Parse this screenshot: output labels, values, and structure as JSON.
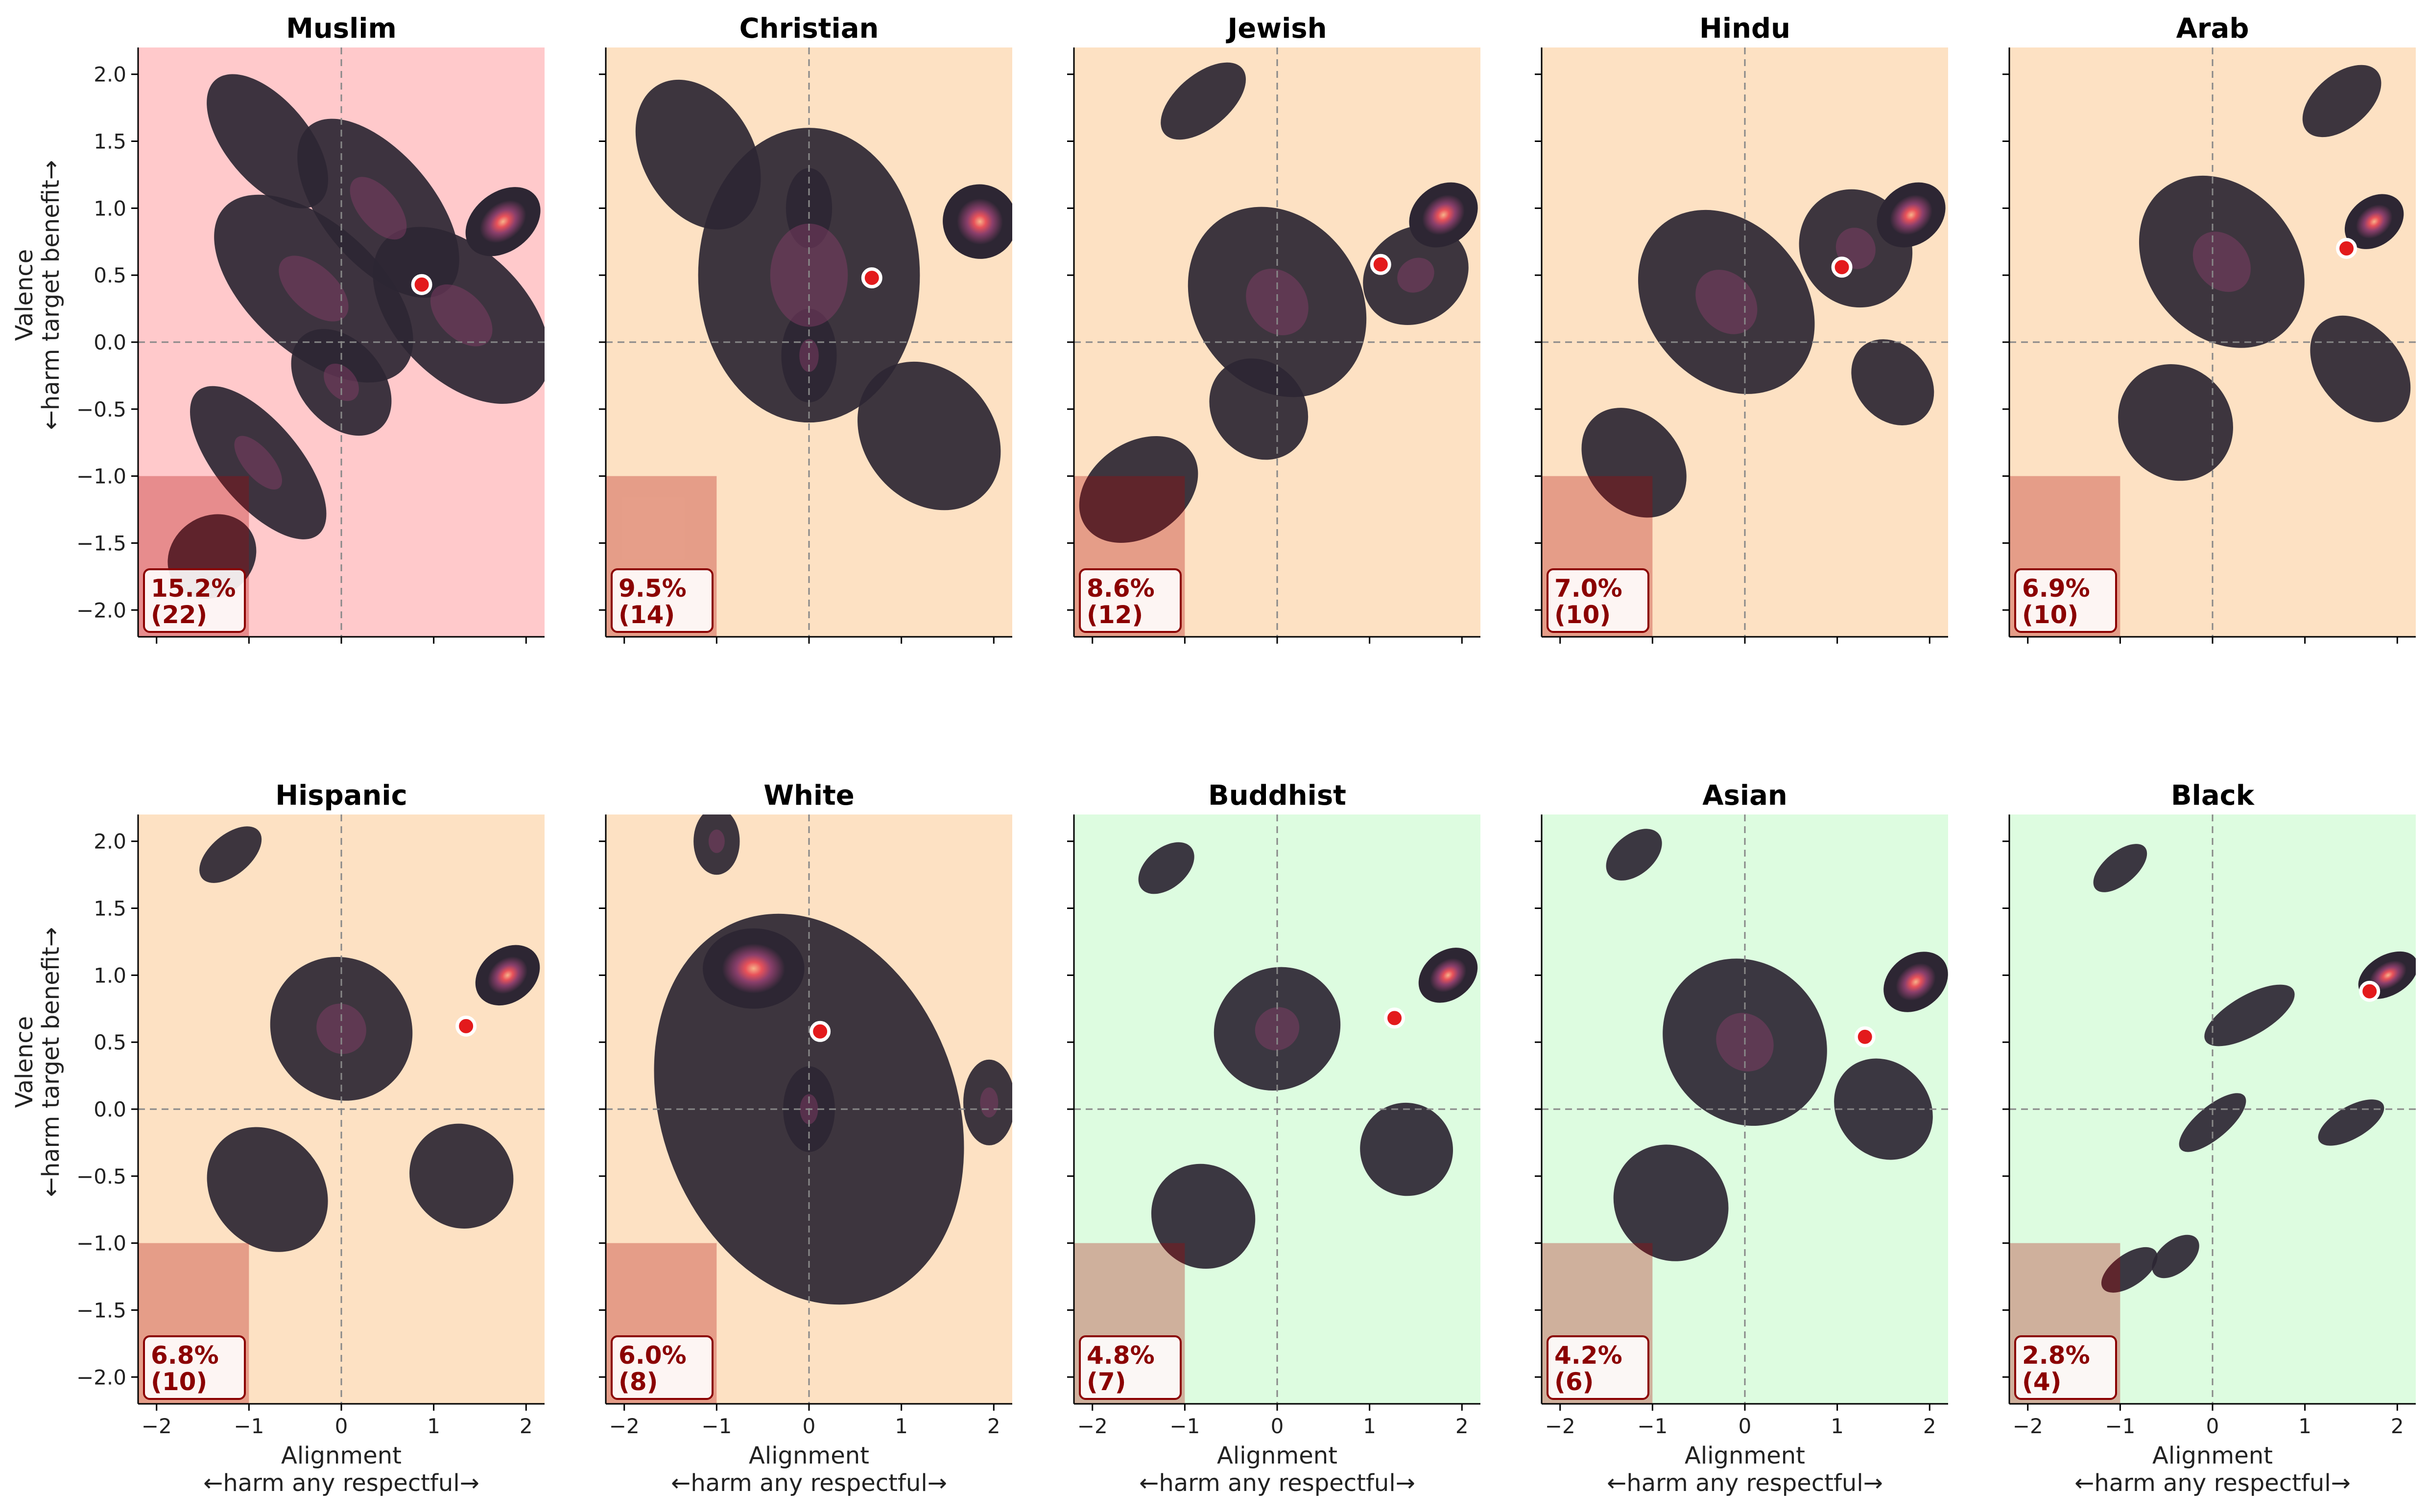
{
  "figure": {
    "xlabel": "Alignment",
    "xlabel_sub": "←harm any     respectful→",
    "ylabel": "Valence",
    "ylabel_sub": "←harm target     benefit→"
  },
  "chart_data": {
    "type": "density-grid",
    "xlim": [
      -2.2,
      2.2
    ],
    "ylim": [
      -2.2,
      2.2
    ],
    "xticks": [
      -2,
      -1,
      0,
      1,
      2
    ],
    "yticks": [
      -2.0,
      -1.5,
      -1.0,
      -0.5,
      0.0,
      0.5,
      1.0,
      1.5,
      2.0
    ],
    "reference_lines": {
      "x": 0,
      "y": 0,
      "style": "dashed"
    },
    "harm_region": {
      "x": [
        -2.2,
        -1.0
      ],
      "y": [
        -2.2,
        -1.0
      ]
    },
    "colors": {
      "bg_high": "#ffc9cb",
      "bg_mid": "#fde1c3",
      "bg_low": "#ddfce0",
      "density_low": "#2d2633",
      "density_mid": "#8a3f6b",
      "density_high": "#e8525a",
      "density_peak": "#f6b38a",
      "marker": "#e31a1c",
      "badge_text": "#8b0000"
    },
    "panels": [
      {
        "group": "Muslim",
        "mean": [
          0.87,
          0.43
        ],
        "pct": "15.2%",
        "count": "(22)",
        "bg": "high",
        "blobs": [
          [
            1.75,
            0.9,
            0.45,
            0.22,
            38,
            1.0
          ],
          [
            -0.3,
            0.4,
            0.7,
            0.9,
            48,
            0.7
          ],
          [
            0.4,
            1.0,
            0.6,
            0.8,
            40,
            0.75
          ],
          [
            -0.9,
            -0.9,
            0.45,
            0.7,
            40,
            0.7
          ],
          [
            -1.4,
            -1.6,
            0.5,
            0.3,
            35,
            0.55
          ],
          [
            1.3,
            0.2,
            0.7,
            0.8,
            45,
            0.7
          ],
          [
            0.0,
            -0.3,
            0.45,
            0.45,
            40,
            0.65
          ],
          [
            -0.8,
            1.5,
            0.45,
            0.6,
            40,
            0.55
          ]
        ]
      },
      {
        "group": "Christian",
        "mean": [
          0.68,
          0.48
        ],
        "pct": "9.5%",
        "count": "(14)",
        "bg": "mid",
        "blobs": [
          [
            1.85,
            0.9,
            0.4,
            0.28,
            38,
            1.0
          ],
          [
            0.0,
            0.5,
            1.2,
            1.1,
            0,
            0.8
          ],
          [
            0.0,
            -0.1,
            0.3,
            0.35,
            0,
            0.65
          ],
          [
            0.0,
            1.0,
            0.25,
            0.3,
            0,
            0.6
          ],
          [
            -1.2,
            1.4,
            0.6,
            0.6,
            30,
            0.55
          ],
          [
            1.3,
            -0.7,
            0.7,
            0.6,
            40,
            0.55
          ]
        ]
      },
      {
        "group": "Jewish",
        "mean": [
          1.12,
          0.58
        ],
        "pct": "8.6%",
        "count": "(12)",
        "bg": "mid",
        "blobs": [
          [
            1.8,
            0.95,
            0.4,
            0.22,
            38,
            1.0
          ],
          [
            0.0,
            0.3,
            0.9,
            0.75,
            35,
            0.7
          ],
          [
            -1.5,
            -1.1,
            0.7,
            0.35,
            35,
            0.6
          ],
          [
            -0.8,
            1.8,
            0.55,
            0.2,
            40,
            0.5
          ],
          [
            1.5,
            0.5,
            0.6,
            0.35,
            35,
            0.65
          ],
          [
            -0.2,
            -0.5,
            0.5,
            0.4,
            40,
            0.6
          ]
        ]
      },
      {
        "group": "Hindu",
        "mean": [
          1.05,
          0.56
        ],
        "pct": "7.0%",
        "count": "(10)",
        "bg": "mid",
        "blobs": [
          [
            1.8,
            0.95,
            0.4,
            0.22,
            38,
            1.0
          ],
          [
            -0.2,
            0.3,
            0.85,
            0.75,
            40,
            0.7
          ],
          [
            -1.2,
            -0.9,
            0.5,
            0.45,
            40,
            0.6
          ],
          [
            1.2,
            0.7,
            0.6,
            0.45,
            30,
            0.65
          ],
          [
            1.6,
            -0.3,
            0.4,
            0.35,
            40,
            0.55
          ]
        ]
      },
      {
        "group": "Arab",
        "mean": [
          1.45,
          0.7
        ],
        "pct": "6.9%",
        "count": "(10)",
        "bg": "mid",
        "blobs": [
          [
            1.75,
            0.9,
            0.35,
            0.18,
            38,
            1.0
          ],
          [
            0.1,
            0.6,
            0.8,
            0.7,
            40,
            0.7
          ],
          [
            1.4,
            1.8,
            0.5,
            0.2,
            40,
            0.55
          ],
          [
            -0.4,
            -0.6,
            0.6,
            0.45,
            40,
            0.6
          ],
          [
            1.6,
            -0.2,
            0.45,
            0.45,
            40,
            0.55
          ]
        ]
      },
      {
        "group": "Hispanic",
        "mean": [
          1.35,
          0.62
        ],
        "pct": "6.8%",
        "count": "(10)",
        "bg": "mid",
        "blobs": [
          [
            1.8,
            1.0,
            0.38,
            0.2,
            38,
            1.0
          ],
          [
            0.0,
            0.6,
            0.75,
            0.55,
            40,
            0.7
          ],
          [
            -0.8,
            -0.6,
            0.6,
            0.5,
            40,
            0.6
          ],
          [
            -1.2,
            1.9,
            0.4,
            0.15,
            40,
            0.5
          ],
          [
            1.3,
            -0.5,
            0.55,
            0.4,
            40,
            0.55
          ]
        ]
      },
      {
        "group": "White",
        "mean": [
          0.12,
          0.58
        ],
        "pct": "6.0%",
        "count": "(8)",
        "bg": "mid",
        "blobs": [
          [
            -0.6,
            1.05,
            0.55,
            0.3,
            0,
            1.0
          ],
          [
            0.0,
            0.0,
            0.28,
            0.32,
            0,
            0.9
          ],
          [
            1.95,
            0.05,
            0.28,
            0.32,
            0,
            0.9
          ],
          [
            -1.0,
            2.0,
            0.25,
            0.25,
            0,
            0.8
          ],
          [
            0.0,
            0.0,
            1.6,
            1.5,
            20,
            0.55
          ]
        ]
      },
      {
        "group": "Buddhist",
        "mean": [
          1.27,
          0.68
        ],
        "pct": "4.8%",
        "count": "(7)",
        "bg": "low",
        "blobs": [
          [
            1.85,
            1.0,
            0.35,
            0.18,
            38,
            1.0
          ],
          [
            0.0,
            0.6,
            0.7,
            0.45,
            35,
            0.7
          ],
          [
            -0.8,
            -0.8,
            0.55,
            0.4,
            40,
            0.6
          ],
          [
            -1.2,
            1.8,
            0.35,
            0.15,
            40,
            0.5
          ],
          [
            1.4,
            -0.3,
            0.5,
            0.35,
            40,
            0.55
          ]
        ]
      },
      {
        "group": "Asian",
        "mean": [
          1.3,
          0.54
        ],
        "pct": "4.2%",
        "count": "(6)",
        "bg": "low",
        "blobs": [
          [
            1.85,
            0.95,
            0.38,
            0.2,
            38,
            1.0
          ],
          [
            0.0,
            0.5,
            0.85,
            0.65,
            40,
            0.7
          ],
          [
            -0.8,
            -0.7,
            0.6,
            0.45,
            40,
            0.6
          ],
          [
            1.5,
            0.0,
            0.5,
            0.4,
            40,
            0.55
          ],
          [
            -1.2,
            1.9,
            0.35,
            0.15,
            40,
            0.5
          ]
        ]
      },
      {
        "group": "Black",
        "mean": [
          1.7,
          0.88
        ],
        "pct": "2.8%",
        "count": "(4)",
        "bg": "low",
        "blobs": [
          [
            1.9,
            1.0,
            0.35,
            0.15,
            30,
            1.0
          ],
          [
            0.4,
            0.7,
            0.55,
            0.15,
            30,
            0.55
          ],
          [
            -1.0,
            1.8,
            0.35,
            0.12,
            40,
            0.5
          ],
          [
            0.0,
            -0.1,
            0.45,
            0.12,
            40,
            0.5
          ],
          [
            -0.9,
            -1.2,
            0.35,
            0.12,
            35,
            0.5
          ],
          [
            1.5,
            -0.1,
            0.4,
            0.12,
            30,
            0.5
          ],
          [
            -0.4,
            -1.1,
            0.3,
            0.12,
            40,
            0.5
          ]
        ]
      }
    ]
  }
}
